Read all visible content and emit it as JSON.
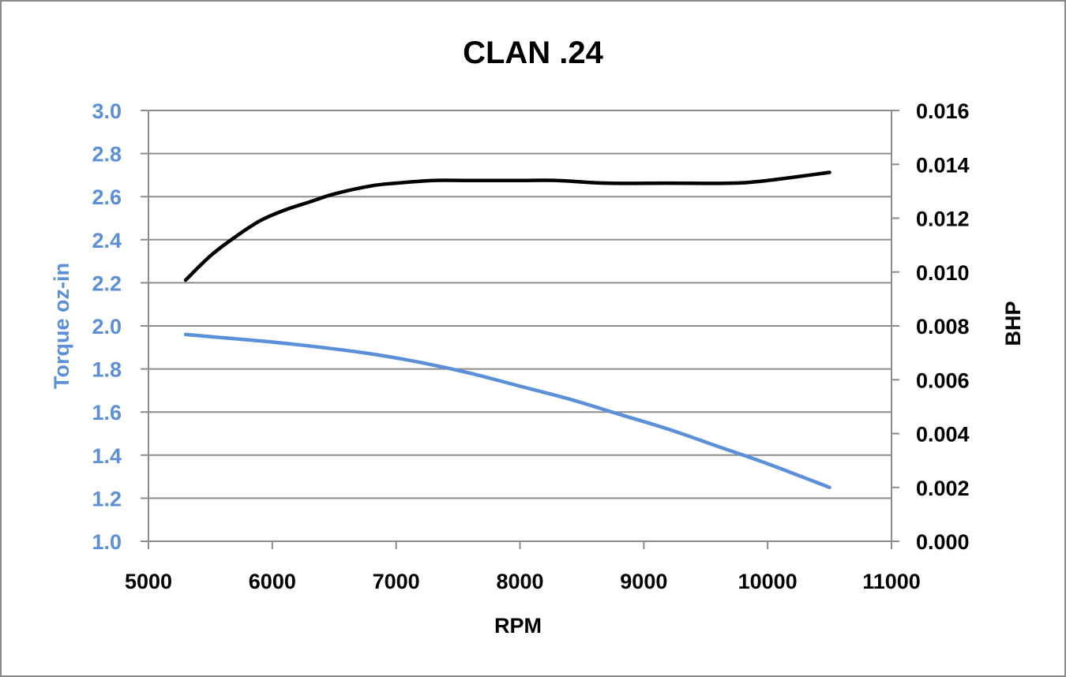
{
  "colors": {
    "torque": "#5b8fd8",
    "bhp": "#000000",
    "grid": "#8c8c8c"
  },
  "chart_data": {
    "type": "line",
    "title": "CLAN .24",
    "xlabel": "RPM",
    "ylabel_left": "Torque oz-in",
    "ylabel_right": "BHP",
    "xlim": [
      5000,
      11000
    ],
    "ylim_left": [
      1.0,
      3.0
    ],
    "ylim_right": [
      0.0,
      0.016
    ],
    "x_ticks": [
      "5000",
      "6000",
      "7000",
      "8000",
      "9000",
      "10000",
      "11000"
    ],
    "y_left_ticks": [
      "3.0",
      "2.8",
      "2.6",
      "2.4",
      "2.2",
      "2.0",
      "1.8",
      "1.6",
      "1.4",
      "1.2",
      "1.0"
    ],
    "y_right_ticks": [
      "0.016",
      "0.014",
      "0.012",
      "0.010",
      "0.008",
      "0.006",
      "0.004",
      "0.002",
      "0.000"
    ],
    "grid": "horizontal",
    "series": [
      {
        "name": "Torque oz-in",
        "axis": "left",
        "x": [
          5300,
          5600,
          6000,
          6400,
          6800,
          7200,
          7600,
          8000,
          8400,
          8800,
          9200,
          9600,
          10000,
          10500
        ],
        "y": [
          1.96,
          1.945,
          1.925,
          1.9,
          1.87,
          1.83,
          1.78,
          1.72,
          1.66,
          1.59,
          1.52,
          1.44,
          1.36,
          1.25
        ]
      },
      {
        "name": "BHP",
        "axis": "right",
        "x": [
          5300,
          5500,
          5700,
          5900,
          6100,
          6300,
          6500,
          6800,
          7000,
          7300,
          7600,
          8000,
          8300,
          8700,
          9200,
          9700,
          10000,
          10500
        ],
        "y": [
          0.0097,
          0.0106,
          0.0113,
          0.0119,
          0.0123,
          0.0126,
          0.0129,
          0.0132,
          0.0133,
          0.0134,
          0.0134,
          0.0134,
          0.0134,
          0.0133,
          0.0133,
          0.0133,
          0.0134,
          0.0137
        ]
      }
    ]
  }
}
